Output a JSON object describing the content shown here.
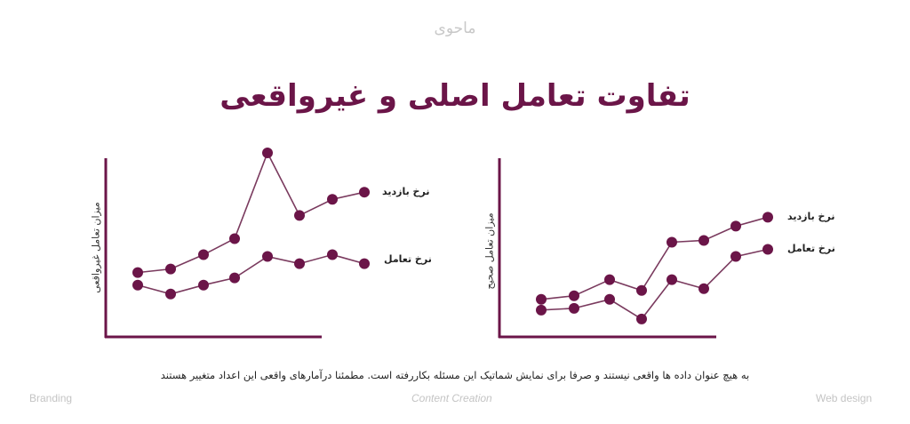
{
  "brand": "ماحوی",
  "title": "تفاوت تعامل اصلی و غیرواقعی",
  "colors": {
    "accent": "#6b1548",
    "line": "#7a3a5e",
    "axis": "#6b1548",
    "muted": "#c4c4c4"
  },
  "note": "به هیچ عنوان داده ها واقعی نیستند و صرفا برای نمایش شماتیک این مسئله بکاررفته است. مطمئنا درآمارهای واقعی این اعداد متغییر هستند",
  "footer": {
    "left": "Branding",
    "center": "Content Creation",
    "right": "Web design"
  },
  "chart_data": [
    {
      "type": "line",
      "title": "",
      "ylabel": "میزان تعامل غیرواقعی",
      "xlabel": "",
      "x": [
        1,
        2,
        3,
        4,
        5,
        6,
        7,
        8
      ],
      "ylim": [
        0,
        100
      ],
      "grid": false,
      "legend_position": "right",
      "series": [
        {
          "name": "نرخ بازدید",
          "values": [
            36,
            38,
            46,
            55,
            103,
            68,
            77,
            81
          ]
        },
        {
          "name": "نرخ تعامل",
          "values": [
            29,
            24,
            29,
            33,
            45,
            41,
            46,
            41
          ]
        }
      ]
    },
    {
      "type": "line",
      "title": "",
      "ylabel": "میزان تعامل صحیح",
      "xlabel": "",
      "x": [
        1,
        2,
        3,
        4,
        5,
        6,
        7,
        8
      ],
      "ylim": [
        0,
        100
      ],
      "grid": false,
      "legend_position": "right",
      "series": [
        {
          "name": "نرخ بازدید",
          "values": [
            21,
            23,
            32,
            26,
            53,
            54,
            62,
            67
          ]
        },
        {
          "name": "نرخ تعامل",
          "values": [
            15,
            16,
            21,
            10,
            32,
            27,
            45,
            49
          ]
        }
      ]
    }
  ]
}
